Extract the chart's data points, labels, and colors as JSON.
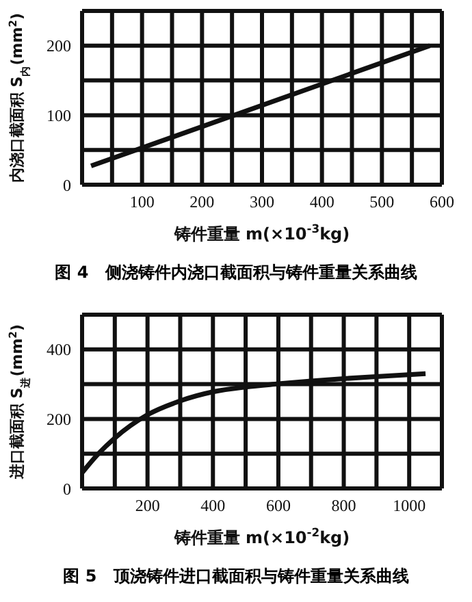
{
  "chart_data": [
    {
      "type": "line",
      "title": "图 4　侧浇铸件内浇口截面积与铸件重量关系曲线",
      "xlabel": "铸件重量 m(×10$^{-3}$kg)",
      "ylabel": "内浇口截面积 S$_{内}$(mm$^{2}$)",
      "series": [
        {
          "color": "#111111",
          "x": [
            15,
            580
          ],
          "values": [
            27,
            200
          ]
        }
      ],
      "xlim": [
        0,
        600
      ],
      "xticks": [
        {
          "value": 0,
          "label": null
        },
        {
          "value": 50,
          "label": null
        },
        100,
        {
          "value": 150,
          "label": null
        },
        200,
        {
          "value": 250,
          "label": null
        },
        300,
        {
          "value": 350,
          "label": null
        },
        400,
        {
          "value": 450,
          "label": null
        },
        500,
        {
          "value": 550,
          "label": null
        },
        600
      ],
      "ylim": [
        0,
        250
      ],
      "yticks": [
        0,
        {
          "value": 50,
          "label": null
        },
        100,
        {
          "value": 150,
          "label": null
        },
        200,
        {
          "value": 250,
          "label": null
        }
      ],
      "grid": true,
      "marker": "none",
      "line_style": "solid",
      "legend": false
    },
    {
      "type": "line",
      "title": "图 5　顶浇铸件进口截面积与铸件重量关系曲线",
      "xlabel": "铸件重量 m(×10$^{-2}$kg)",
      "ylabel": "进口截面积 S$_{进}$(mm$^{2}$)",
      "series": [
        {
          "color": "#111111",
          "x": [
            0,
            50,
            100,
            200,
            300,
            400,
            500,
            600,
            700,
            800,
            900,
            1050
          ],
          "values": [
            45,
            100,
            145,
            212,
            252,
            278,
            292,
            301,
            309,
            316,
            322,
            330
          ]
        }
      ],
      "xlim": [
        0,
        1100
      ],
      "xticks": [
        {
          "value": 0,
          "label": null
        },
        {
          "value": 100,
          "label": null
        },
        200,
        {
          "value": 300,
          "label": null
        },
        400,
        {
          "value": 500,
          "label": null
        },
        600,
        {
          "value": 700,
          "label": null
        },
        800,
        {
          "value": 900,
          "label": null
        },
        1000,
        {
          "value": 1100,
          "label": null
        }
      ],
      "ylim": [
        0,
        500
      ],
      "yticks": [
        0,
        {
          "value": 100,
          "label": null
        },
        200,
        {
          "value": 300,
          "label": null
        },
        400,
        {
          "value": 500,
          "label": null
        }
      ],
      "grid": true,
      "marker": "none",
      "line_style": "solid",
      "legend": false
    }
  ]
}
